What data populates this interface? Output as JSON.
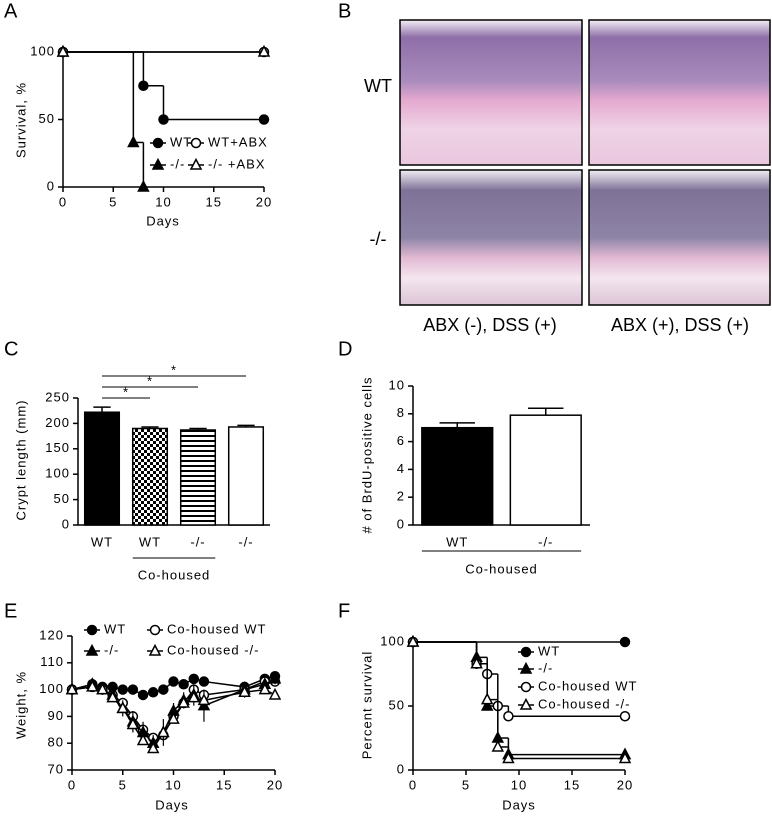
{
  "panel_labels": [
    "A",
    "B",
    "C",
    "D",
    "E",
    "F"
  ],
  "histology": {
    "row_labels": [
      "WT",
      "-/-"
    ],
    "column_labels": [
      "ABX (-), DSS (+)",
      "ABX (+), DSS (+)"
    ]
  },
  "chart_data": [
    {
      "type": "step",
      "x_label": "Days",
      "y_label": "Survival, %",
      "xlim": [
        0,
        20
      ],
      "ylim": [
        0,
        100
      ],
      "xticks": [
        0,
        5,
        10,
        15,
        20
      ],
      "yticks": [
        0,
        50,
        100
      ],
      "series": [
        {
          "name": "WT",
          "color": "#000000",
          "marker": "circle",
          "filled": true,
          "x": [
            0,
            8,
            10,
            20
          ],
          "values": [
            100,
            75,
            50,
            50
          ]
        },
        {
          "name": "WT+ABX",
          "color": "#000000",
          "marker": "circle",
          "filled": false,
          "x": [
            0,
            20
          ],
          "values": [
            100,
            100
          ]
        },
        {
          "name": "-/-",
          "color": "#000000",
          "marker": "triangle",
          "filled": true,
          "x": [
            0,
            7,
            8
          ],
          "values": [
            100,
            33,
            0
          ]
        },
        {
          "name": "-/- +ABX",
          "color": "#000000",
          "marker": "triangle",
          "filled": false,
          "x": [
            0,
            20
          ],
          "values": [
            100,
            100
          ]
        }
      ]
    },
    {
      "type": "bar",
      "y_label": "Crypt length (mm)",
      "categories": [
        "WT",
        "WT",
        "-/-",
        "-/-"
      ],
      "values": [
        222,
        190,
        187,
        193
      ],
      "errors": [
        10,
        3,
        3,
        3
      ],
      "patterns": [
        "solid",
        "checker",
        "stripes",
        "none"
      ],
      "ylim": [
        0,
        250
      ],
      "yticks": [
        0,
        50,
        100,
        150,
        200,
        250
      ],
      "group_label": "Co-housed",
      "annotations": [
        "*",
        "*",
        "*"
      ]
    },
    {
      "type": "bar",
      "y_label": "# of BrdU-positive cells",
      "categories": [
        "WT",
        "-/-"
      ],
      "values": [
        7,
        7.9
      ],
      "errors": [
        0.35,
        0.5
      ],
      "patterns": [
        "solid",
        "none"
      ],
      "ylim": [
        0,
        10
      ],
      "yticks": [
        0,
        2,
        4,
        6,
        8,
        10
      ],
      "group_label": "Co-housed"
    },
    {
      "type": "line",
      "x_label": "Days",
      "y_label": "Weight, %",
      "xlim": [
        0,
        20
      ],
      "ylim": [
        70,
        120
      ],
      "xticks": [
        0,
        5,
        10,
        15,
        20
      ],
      "yticks": [
        70,
        80,
        90,
        100,
        110,
        120
      ],
      "series": [
        {
          "name": "WT",
          "color": "#000000",
          "marker": "circle",
          "filled": true,
          "x": [
            0,
            2,
            3,
            4,
            5,
            6,
            7,
            8,
            9,
            10,
            11,
            12,
            13,
            17,
            19,
            20
          ],
          "values": [
            100,
            102,
            101,
            101,
            100,
            100,
            98,
            99,
            100,
            103,
            102,
            104,
            103,
            101,
            104,
            105
          ]
        },
        {
          "name": "Co-housed WT",
          "color": "#000000",
          "marker": "circle",
          "filled": false,
          "x": [
            0,
            2,
            3,
            4,
            5,
            6,
            7,
            8,
            9,
            10,
            11,
            12,
            13,
            17,
            19,
            20
          ],
          "values": [
            100,
            101,
            100,
            98,
            95,
            90,
            85,
            82,
            83,
            90,
            95,
            100,
            98,
            100,
            103,
            103
          ]
        },
        {
          "name": "-/-",
          "color": "#000000",
          "marker": "triangle",
          "filled": true,
          "x": [
            0,
            2,
            3,
            4,
            5,
            6,
            7,
            8,
            9,
            10,
            11,
            12,
            13,
            17,
            19,
            20
          ],
          "values": [
            100,
            102,
            100,
            98,
            93,
            88,
            84,
            80,
            84,
            92,
            96,
            98,
            94,
            100,
            102,
            104
          ],
          "errors": [
            0,
            1,
            1,
            2,
            3,
            4,
            4,
            3,
            5,
            3,
            3,
            4,
            6,
            3,
            2,
            2
          ]
        },
        {
          "name": "Co-housed -/-",
          "color": "#000000",
          "marker": "triangle",
          "filled": false,
          "x": [
            0,
            2,
            3,
            4,
            5,
            6,
            7,
            8,
            9,
            10,
            11,
            12,
            13,
            17,
            19,
            20
          ],
          "values": [
            100,
            101,
            100,
            97,
            93,
            87,
            81,
            78,
            84,
            89,
            95,
            97,
            96,
            99,
            100,
            98
          ]
        }
      ]
    },
    {
      "type": "step",
      "x_label": "Days",
      "y_label": "Percent survival",
      "xlim": [
        0,
        20
      ],
      "ylim": [
        0,
        100
      ],
      "xticks": [
        0,
        5,
        10,
        15,
        20
      ],
      "yticks": [
        0,
        50,
        100
      ],
      "series": [
        {
          "name": "WT",
          "color": "#000000",
          "marker": "circle",
          "filled": true,
          "x": [
            0,
            20
          ],
          "values": [
            100,
            100
          ]
        },
        {
          "name": "-/-",
          "color": "#000000",
          "marker": "triangle",
          "filled": true,
          "x": [
            0,
            6,
            7,
            8,
            9,
            20
          ],
          "values": [
            100,
            88,
            50,
            25,
            12,
            12
          ]
        },
        {
          "name": "Co-housed WT",
          "color": "#000000",
          "marker": "circle",
          "filled": false,
          "x": [
            0,
            6,
            7,
            8,
            9,
            20
          ],
          "values": [
            100,
            83,
            75,
            50,
            42,
            42
          ]
        },
        {
          "name": "Co-housed -/-",
          "color": "#000000",
          "marker": "triangle",
          "filled": false,
          "x": [
            0,
            6,
            7,
            8,
            9,
            20
          ],
          "values": [
            100,
            83,
            55,
            18,
            9,
            9
          ]
        }
      ]
    }
  ]
}
